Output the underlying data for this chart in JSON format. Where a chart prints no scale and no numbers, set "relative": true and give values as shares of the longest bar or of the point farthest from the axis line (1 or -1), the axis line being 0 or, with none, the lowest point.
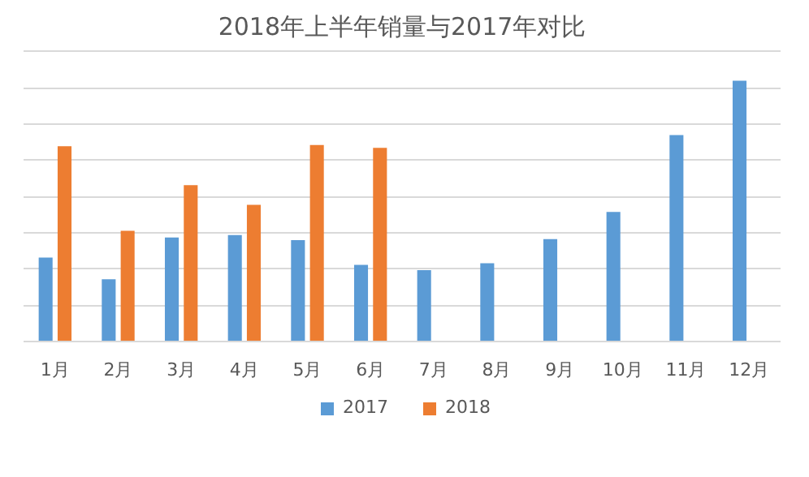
{
  "chart_data": {
    "type": "bar",
    "title": "2018年上半年销量与2017年对比",
    "relative": true,
    "grid": "y",
    "legend": "bottom",
    "categories": [
      "1月",
      "2月",
      "3月",
      "4月",
      "5月",
      "6月",
      "7月",
      "8月",
      "9月",
      "10月",
      "11月",
      "12月"
    ],
    "series": [
      {
        "name": "2017",
        "color": "#5b9bd5",
        "values": [
          0.322,
          0.239,
          0.399,
          0.408,
          0.389,
          0.294,
          0.274,
          0.3,
          0.393,
          0.497,
          0.792,
          1.0
        ]
      },
      {
        "name": "2018",
        "color": "#ed7d31",
        "values": [
          0.749,
          0.425,
          0.6,
          0.524,
          0.754,
          0.743,
          null,
          null,
          null,
          null,
          null,
          null
        ]
      }
    ]
  }
}
